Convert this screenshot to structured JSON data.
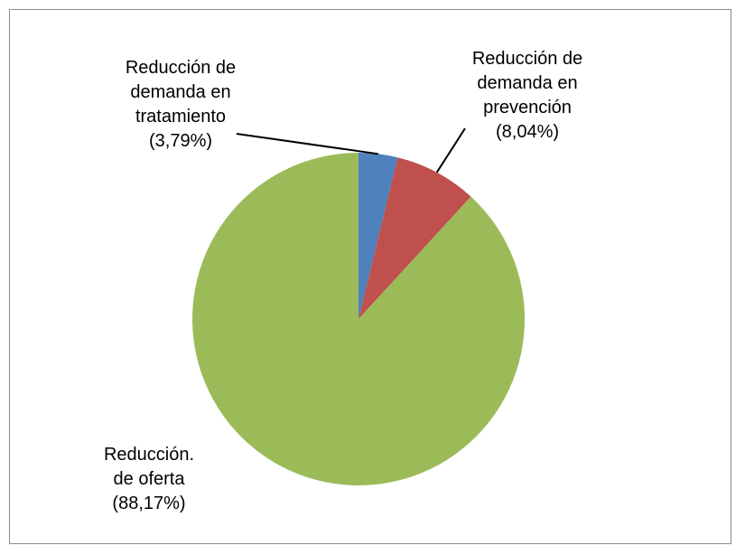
{
  "chart_data": {
    "type": "pie",
    "categories": [
      "Reducción de demanda en tratamiento",
      "Reducción de demanda en prevención",
      "Reducción. de oferta"
    ],
    "values": [
      3.79,
      8.04,
      88.17
    ],
    "value_labels": [
      "(3,79%)",
      "(8,04%)",
      "(88,17%)"
    ],
    "colors": [
      "#4f81bd",
      "#c0504d",
      "#9bbb59"
    ]
  }
}
